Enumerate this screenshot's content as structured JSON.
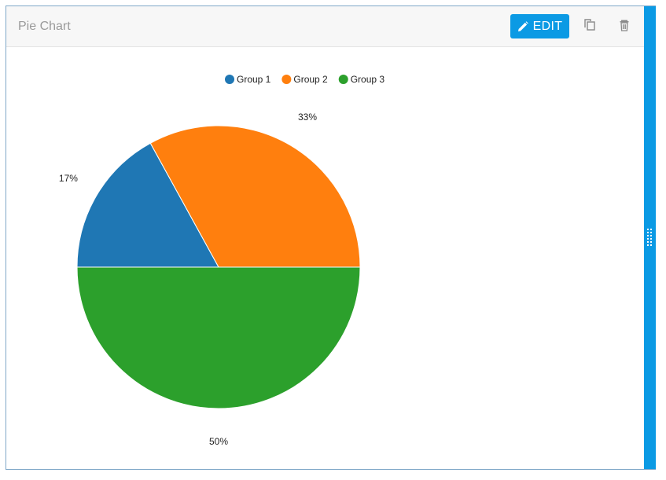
{
  "widget": {
    "title": "Pie Chart",
    "edit_label": "EDIT",
    "icons": {
      "edit": "pencil-icon",
      "copy": "copy-icon",
      "delete": "trash-icon",
      "resize": "grip-icon"
    },
    "accent_color": "#0b9ae4"
  },
  "chart_data": {
    "type": "pie",
    "legend_position": "top",
    "categories": [
      "Group 1",
      "Group 2",
      "Group 3"
    ],
    "values": [
      17,
      33,
      50
    ],
    "labels": [
      "17%",
      "33%",
      "50%"
    ],
    "colors": [
      "#1f77b4",
      "#ff7f0e",
      "#2ca02c"
    ]
  }
}
